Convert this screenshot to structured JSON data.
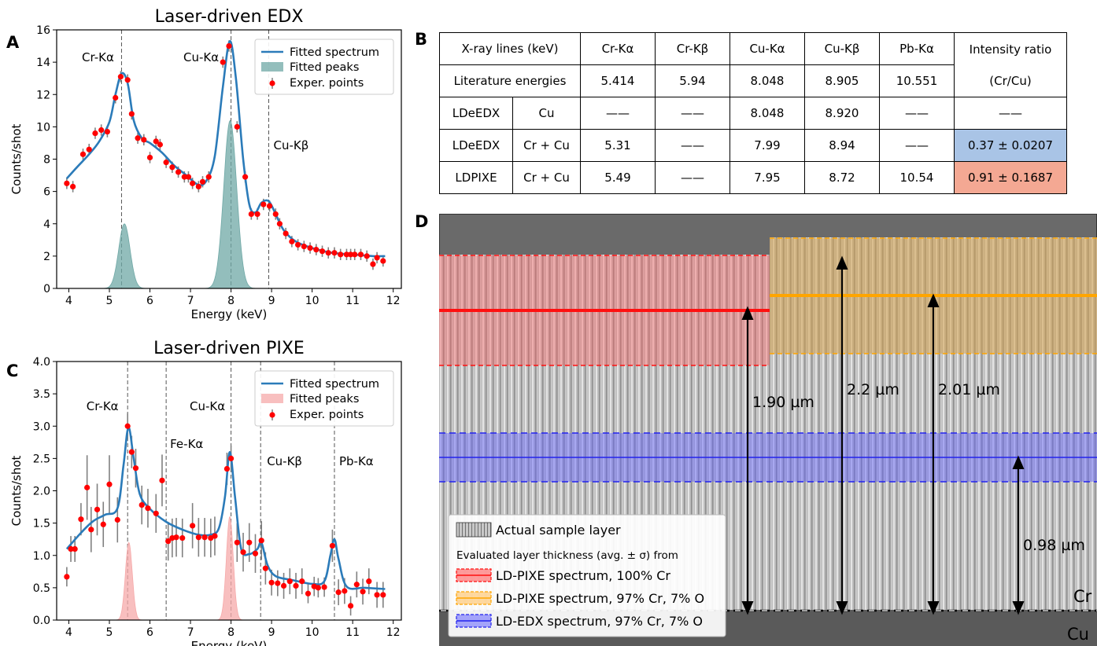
{
  "panel_labels": {
    "a": "A",
    "b": "B",
    "c": "C",
    "d": "D"
  },
  "chart_data": [
    {
      "type": "line",
      "title": "Laser-driven EDX",
      "xlabel": "Energy (keV)",
      "ylabel": "Counts/shot",
      "xlim": [
        3.7,
        12.2
      ],
      "ylim": [
        0,
        16
      ],
      "xticks": [
        "4",
        "5",
        "6",
        "7",
        "8",
        "9",
        "10",
        "11",
        "12"
      ],
      "yticks": [
        "0",
        "2",
        "4",
        "6",
        "8",
        "10",
        "12",
        "14",
        "16"
      ],
      "legend": {
        "position": "top-right",
        "fit": "Fitted spectrum",
        "peaks": "Fitted peaks",
        "points": "Exper. points"
      },
      "colors": {
        "fit": "#2b7bb9",
        "peaks": "#6fa8a6",
        "points": "#ff0000",
        "errbar": "#808080",
        "vline": "#555555"
      },
      "line_labels": [
        {
          "text": "Cr-Kα",
          "x": 5.3
        },
        {
          "text": "Cu-Kα",
          "x": 8.0
        },
        {
          "text": "Cu-Kβ",
          "x": 8.93
        }
      ],
      "points": [
        [
          3.95,
          6.5
        ],
        [
          4.1,
          6.3
        ],
        [
          4.35,
          8.3
        ],
        [
          4.5,
          8.6
        ],
        [
          4.65,
          9.6
        ],
        [
          4.8,
          9.8
        ],
        [
          4.95,
          9.7
        ],
        [
          5.15,
          11.8
        ],
        [
          5.28,
          13.1
        ],
        [
          5.45,
          12.9
        ],
        [
          5.55,
          10.8
        ],
        [
          5.7,
          9.3
        ],
        [
          5.85,
          9.2
        ],
        [
          6.0,
          8.1
        ],
        [
          6.15,
          9.1
        ],
        [
          6.25,
          8.9
        ],
        [
          6.4,
          7.8
        ],
        [
          6.55,
          7.5
        ],
        [
          6.7,
          7.2
        ],
        [
          6.85,
          6.9
        ],
        [
          6.95,
          6.9
        ],
        [
          7.05,
          6.5
        ],
        [
          7.2,
          6.3
        ],
        [
          7.3,
          6.6
        ],
        [
          7.45,
          6.9
        ],
        [
          7.8,
          14.0
        ],
        [
          7.95,
          15.0
        ],
        [
          8.15,
          10.0
        ],
        [
          8.35,
          6.9
        ],
        [
          8.5,
          4.6
        ],
        [
          8.65,
          4.6
        ],
        [
          8.8,
          5.2
        ],
        [
          8.95,
          5.1
        ],
        [
          9.1,
          4.6
        ],
        [
          9.2,
          4.0
        ],
        [
          9.35,
          3.4
        ],
        [
          9.5,
          2.9
        ],
        [
          9.65,
          2.7
        ],
        [
          9.8,
          2.6
        ],
        [
          9.95,
          2.5
        ],
        [
          10.1,
          2.4
        ],
        [
          10.25,
          2.3
        ],
        [
          10.4,
          2.2
        ],
        [
          10.55,
          2.2
        ],
        [
          10.7,
          2.1
        ],
        [
          10.85,
          2.1
        ],
        [
          10.95,
          2.1
        ],
        [
          11.05,
          2.1
        ],
        [
          11.2,
          2.1
        ],
        [
          11.35,
          2.0
        ],
        [
          11.5,
          1.5
        ],
        [
          11.6,
          1.9
        ],
        [
          11.75,
          1.7
        ]
      ],
      "fit_curve": [
        [
          3.95,
          6.8
        ],
        [
          4.2,
          7.5
        ],
        [
          4.5,
          8.3
        ],
        [
          4.75,
          9.1
        ],
        [
          5.0,
          10.3
        ],
        [
          5.15,
          12.0
        ],
        [
          5.3,
          13.3
        ],
        [
          5.45,
          12.7
        ],
        [
          5.6,
          10.4
        ],
        [
          5.8,
          9.3
        ],
        [
          6.0,
          9.0
        ],
        [
          6.3,
          8.4
        ],
        [
          6.6,
          7.6
        ],
        [
          6.9,
          7.0
        ],
        [
          7.2,
          6.4
        ],
        [
          7.4,
          6.7
        ],
        [
          7.6,
          8.2
        ],
        [
          7.8,
          12.5
        ],
        [
          7.97,
          15.3
        ],
        [
          8.12,
          13.0
        ],
        [
          8.3,
          8.0
        ],
        [
          8.45,
          5.2
        ],
        [
          8.6,
          4.7
        ],
        [
          8.75,
          5.3
        ],
        [
          8.93,
          5.4
        ],
        [
          9.1,
          4.6
        ],
        [
          9.3,
          3.6
        ],
        [
          9.6,
          2.9
        ],
        [
          10.0,
          2.5
        ],
        [
          10.5,
          2.2
        ],
        [
          11.0,
          2.1
        ],
        [
          11.5,
          2.0
        ],
        [
          11.8,
          2.0
        ]
      ],
      "peaks": [
        {
          "center": 5.37,
          "height": 4.0,
          "sigma": 0.14
        },
        {
          "center": 7.98,
          "height": 10.4,
          "sigma": 0.16
        }
      ]
    },
    {
      "type": "line",
      "title": "Laser-driven PIXE",
      "xlabel": "Energy (keV)",
      "ylabel": "Counts/shot",
      "xlim": [
        3.7,
        12.2
      ],
      "ylim": [
        0,
        4.0
      ],
      "xticks": [
        "4",
        "5",
        "6",
        "7",
        "8",
        "9",
        "10",
        "11",
        "12"
      ],
      "yticks": [
        "0.0",
        "0.5",
        "1.0",
        "1.5",
        "2.0",
        "2.5",
        "3.0",
        "3.5",
        "4.0"
      ],
      "legend": {
        "position": "top-right",
        "fit": "Fitted spectrum",
        "peaks": "Fitted peaks",
        "points": "Exper. points"
      },
      "colors": {
        "fit": "#2b7bb9",
        "peaks": "#f6a9a9",
        "points": "#ff0000",
        "errbar": "#808080",
        "vline": "#555555"
      },
      "line_labels": [
        {
          "text": "Cr-Kα",
          "x": 5.45
        },
        {
          "text": "Fe-Kα",
          "x": 6.4
        },
        {
          "text": "Cu-Kα",
          "x": 8.0
        },
        {
          "text": "Cu-Kβ",
          "x": 8.73
        },
        {
          "text": "Pb-Kα",
          "x": 10.55
        }
      ],
      "points": [
        [
          3.95,
          0.67,
          0.15
        ],
        [
          4.05,
          1.1,
          0.2
        ],
        [
          4.15,
          1.1,
          0.2
        ],
        [
          4.3,
          1.56,
          0.25
        ],
        [
          4.45,
          2.05,
          0.5
        ],
        [
          4.55,
          1.4,
          0.35
        ],
        [
          4.7,
          1.71,
          0.4
        ],
        [
          4.85,
          1.48,
          0.35
        ],
        [
          5.0,
          2.1,
          0.45
        ],
        [
          5.2,
          1.55,
          0.35
        ],
        [
          5.45,
          3.0,
          0.2
        ],
        [
          5.55,
          2.6,
          0.25
        ],
        [
          5.65,
          2.35,
          0.3
        ],
        [
          5.8,
          1.78,
          0.3
        ],
        [
          5.95,
          1.73,
          0.3
        ],
        [
          6.15,
          1.65,
          0.3
        ],
        [
          6.3,
          2.16,
          0.4
        ],
        [
          6.45,
          1.22,
          0.3
        ],
        [
          6.55,
          1.27,
          0.3
        ],
        [
          6.65,
          1.28,
          0.3
        ],
        [
          6.8,
          1.27,
          0.3
        ],
        [
          7.05,
          1.46,
          0.35
        ],
        [
          7.2,
          1.28,
          0.3
        ],
        [
          7.35,
          1.28,
          0.3
        ],
        [
          7.5,
          1.27,
          0.3
        ],
        [
          7.6,
          1.3,
          0.3
        ],
        [
          7.9,
          2.34,
          0.25
        ],
        [
          8.0,
          2.5,
          0.2
        ],
        [
          8.15,
          1.2,
          0.3
        ],
        [
          8.3,
          1.05,
          0.3
        ],
        [
          8.45,
          1.2,
          0.3
        ],
        [
          8.6,
          1.03,
          0.3
        ],
        [
          8.75,
          1.23,
          0.3
        ],
        [
          8.85,
          0.8,
          0.25
        ],
        [
          9.0,
          0.58,
          0.2
        ],
        [
          9.15,
          0.57,
          0.2
        ],
        [
          9.3,
          0.53,
          0.2
        ],
        [
          9.45,
          0.6,
          0.2
        ],
        [
          9.6,
          0.53,
          0.2
        ],
        [
          9.75,
          0.6,
          0.2
        ],
        [
          9.9,
          0.41,
          0.15
        ],
        [
          10.05,
          0.52,
          0.15
        ],
        [
          10.15,
          0.5,
          0.15
        ],
        [
          10.3,
          0.51,
          0.15
        ],
        [
          10.5,
          1.15,
          0.25
        ],
        [
          10.65,
          0.43,
          0.2
        ],
        [
          10.8,
          0.45,
          0.2
        ],
        [
          10.95,
          0.22,
          0.15
        ],
        [
          11.1,
          0.55,
          0.2
        ],
        [
          11.25,
          0.44,
          0.2
        ],
        [
          11.4,
          0.6,
          0.2
        ],
        [
          11.6,
          0.39,
          0.2
        ],
        [
          11.75,
          0.39,
          0.2
        ]
      ],
      "fit_curve": [
        [
          3.95,
          1.1
        ],
        [
          4.3,
          1.35
        ],
        [
          4.6,
          1.53
        ],
        [
          4.9,
          1.63
        ],
        [
          5.2,
          1.73
        ],
        [
          5.35,
          2.4
        ],
        [
          5.47,
          2.98
        ],
        [
          5.6,
          2.5
        ],
        [
          5.75,
          1.95
        ],
        [
          6.0,
          1.72
        ],
        [
          6.4,
          1.52
        ],
        [
          6.8,
          1.4
        ],
        [
          7.2,
          1.32
        ],
        [
          7.5,
          1.32
        ],
        [
          7.7,
          1.42
        ],
        [
          7.85,
          1.9
        ],
        [
          7.97,
          2.6
        ],
        [
          8.1,
          1.9
        ],
        [
          8.25,
          1.1
        ],
        [
          8.45,
          1.02
        ],
        [
          8.65,
          1.1
        ],
        [
          8.75,
          1.2
        ],
        [
          8.9,
          0.85
        ],
        [
          9.1,
          0.68
        ],
        [
          9.5,
          0.62
        ],
        [
          10.0,
          0.56
        ],
        [
          10.3,
          0.6
        ],
        [
          10.45,
          1.0
        ],
        [
          10.55,
          1.25
        ],
        [
          10.65,
          0.95
        ],
        [
          10.85,
          0.52
        ],
        [
          11.3,
          0.5
        ],
        [
          11.8,
          0.48
        ]
      ],
      "peaks": [
        {
          "center": 5.48,
          "height": 1.2,
          "sigma": 0.085
        },
        {
          "center": 7.97,
          "height": 1.6,
          "sigma": 0.085
        }
      ]
    }
  ],
  "table": {
    "header": {
      "lines": "X-ray lines (keV)",
      "cols": [
        "Cr-Kα",
        "Cr-Kβ",
        "Cu-Kα",
        "Cu-Kβ",
        "Pb-Kα"
      ],
      "ratio": "Intensity ratio"
    },
    "lit": {
      "label": "Literature energies",
      "values": [
        "5.414",
        "5.94",
        "8.048",
        "8.905",
        "10.551"
      ],
      "ratio_unit": "(Cr/Cu)"
    },
    "rows": [
      {
        "name": "LDeEDX",
        "sample": "Cu",
        "values": [
          "——",
          "——",
          "8.048",
          "8.920",
          "——"
        ],
        "ratio": "——"
      },
      {
        "name": "LDeEDX",
        "sample": "Cr + Cu",
        "values": [
          "5.31",
          "——",
          "7.99",
          "8.94",
          "——"
        ],
        "ratio": "0.37 ± 0.0207"
      },
      {
        "name": "LDPIXE",
        "sample": "Cr + Cu",
        "values": [
          "5.49",
          "——",
          "7.95",
          "8.72",
          "10.54"
        ],
        "ratio": "0.91 ± 0.1687"
      }
    ]
  },
  "micrograph": {
    "measurements": [
      "1.90 µm",
      "2.2 µm",
      "2.01 µm",
      "0.98 µm"
    ],
    "layers": {
      "top": "Cr",
      "bottom": "Cu"
    },
    "legend": {
      "sample": "Actual sample layer",
      "heading": "Evaluated layer thickness (avg. ± σ) from",
      "items": [
        "LD-PIXE spectrum, 100% Cr",
        "LD-PIXE spectrum, 97% Cr, 7% O",
        "LD-EDX spectrum, 97% Cr, 7% O"
      ]
    },
    "colors": {
      "red": "#ff2020",
      "orange": "#ffa500",
      "blue": "#2222ee",
      "substrate": "#5a5a5a",
      "bg": "#6a6a6a",
      "cr_layer": "#bdbdbd"
    }
  }
}
